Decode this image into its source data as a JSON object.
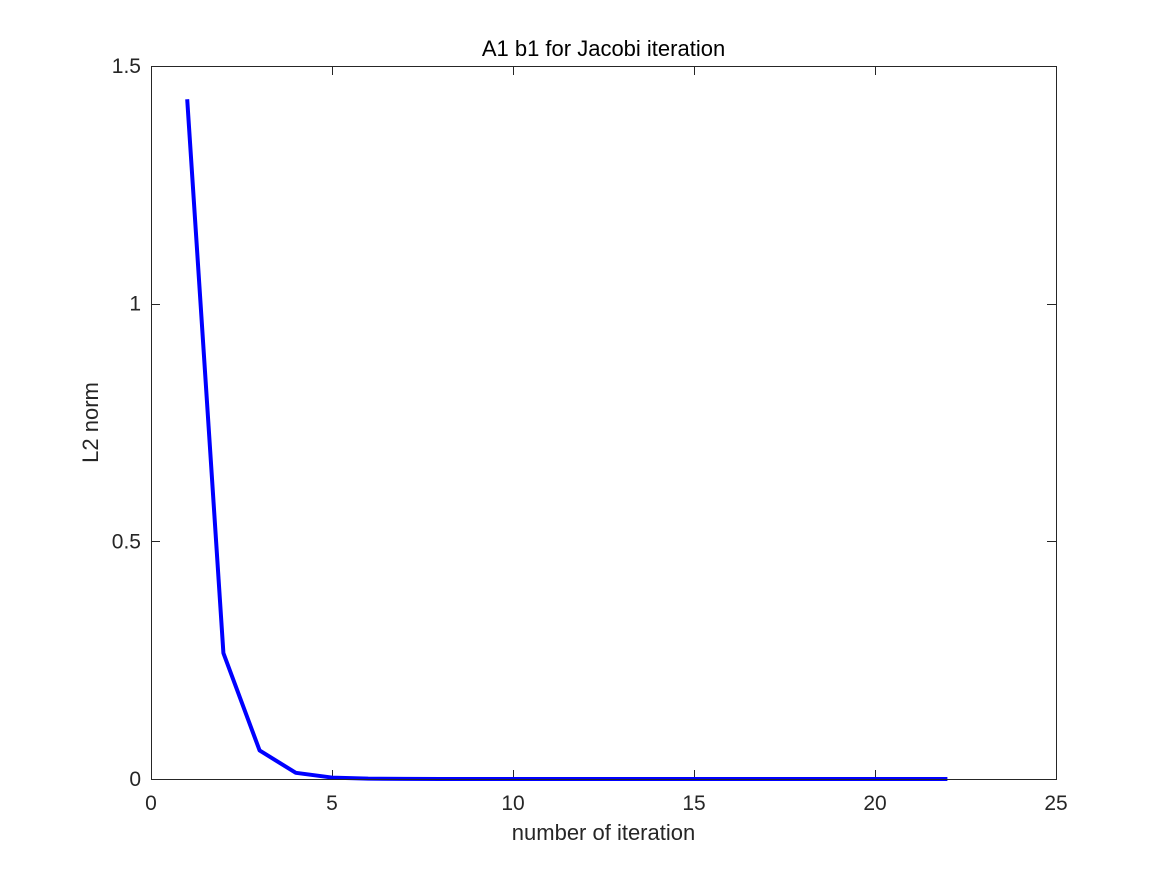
{
  "chart_data": {
    "type": "line",
    "title": "A1 b1 for Jacobi iteration",
    "xlabel": "number of iteration",
    "ylabel": "L2 norm",
    "xlim": [
      0,
      25
    ],
    "ylim": [
      0,
      1.5
    ],
    "xticks": [
      0,
      5,
      10,
      15,
      20,
      25
    ],
    "yticks": [
      0,
      0.5,
      1,
      1.5
    ],
    "xtick_labels": [
      "0",
      "5",
      "10",
      "15",
      "20",
      "25"
    ],
    "ytick_labels": [
      "0",
      "0.5",
      "1",
      "1.5"
    ],
    "grid": false,
    "box": true,
    "series": [
      {
        "color": "#0000ff",
        "x": [
          1,
          2,
          3,
          4,
          5,
          6,
          7,
          8,
          9,
          10,
          11,
          12,
          13,
          14,
          15,
          16,
          17,
          18,
          19,
          20,
          21,
          22
        ],
        "y": [
          1.43,
          0.265,
          0.06,
          0.013,
          0.003,
          0.0007,
          0.00015,
          4e-05,
          1e-05,
          0,
          0,
          0,
          0,
          0,
          0,
          0,
          0,
          0,
          0,
          0,
          0,
          0
        ]
      }
    ]
  }
}
